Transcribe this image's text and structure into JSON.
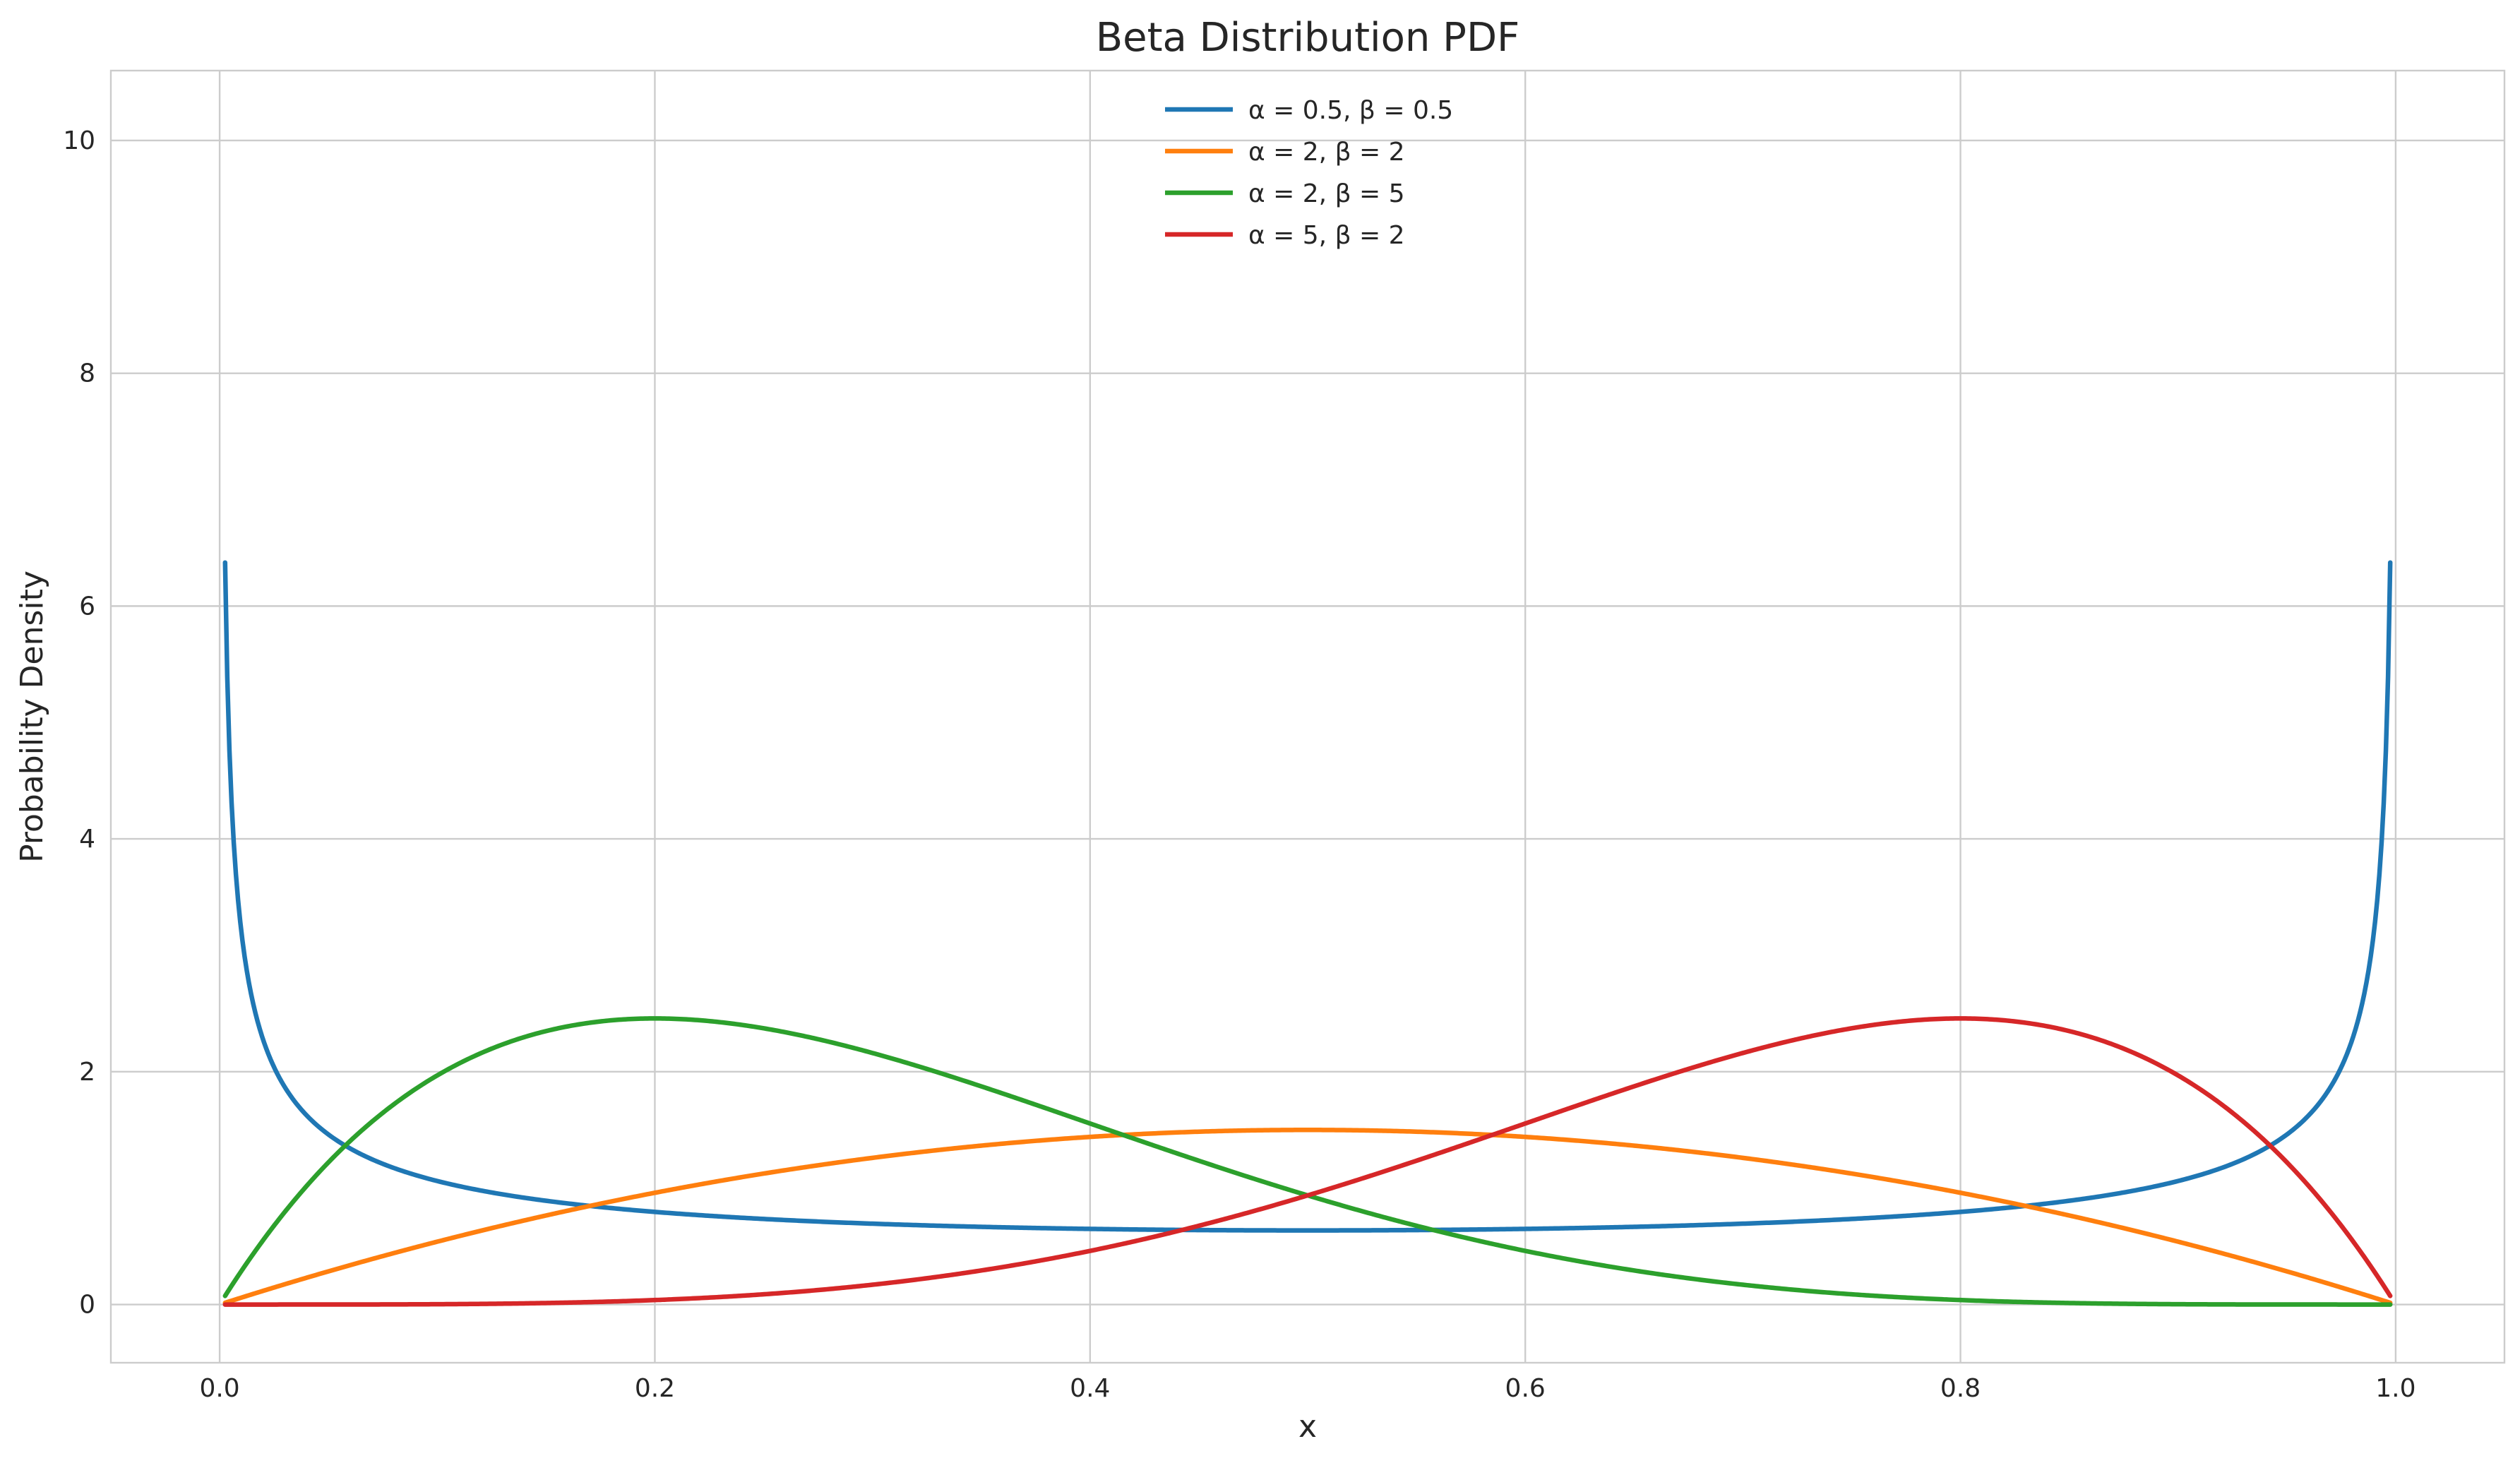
{
  "chart_data": {
    "type": "line",
    "title": "Beta Distribution PDF",
    "xlabel": "x",
    "ylabel": "Probability Density",
    "xlim": [
      -0.05,
      1.05
    ],
    "ylim": [
      -0.5,
      10.6
    ],
    "x_ticks": [
      "0.0",
      "0.2",
      "0.4",
      "0.6",
      "0.8",
      "1.0"
    ],
    "x_tick_values": [
      0.0,
      0.2,
      0.4,
      0.6,
      0.8,
      1.0
    ],
    "y_ticks": [
      "0",
      "2",
      "4",
      "6",
      "8",
      "10"
    ],
    "y_tick_values": [
      0,
      2,
      4,
      6,
      8,
      10
    ],
    "grid": true,
    "legend_position": "top-center",
    "series": [
      {
        "name": "α = 0.5, β = 0.5",
        "alpha": 0.5,
        "beta": 0.5,
        "color": "#1f77b4"
      },
      {
        "name": "α = 2, β = 2",
        "alpha": 2,
        "beta": 2,
        "color": "#ff7f0e"
      },
      {
        "name": "α = 2, β = 5",
        "alpha": 2,
        "beta": 5,
        "color": "#2ca02c"
      },
      {
        "name": "α = 5, β = 2",
        "alpha": 5,
        "beta": 2,
        "color": "#d62728"
      }
    ]
  }
}
